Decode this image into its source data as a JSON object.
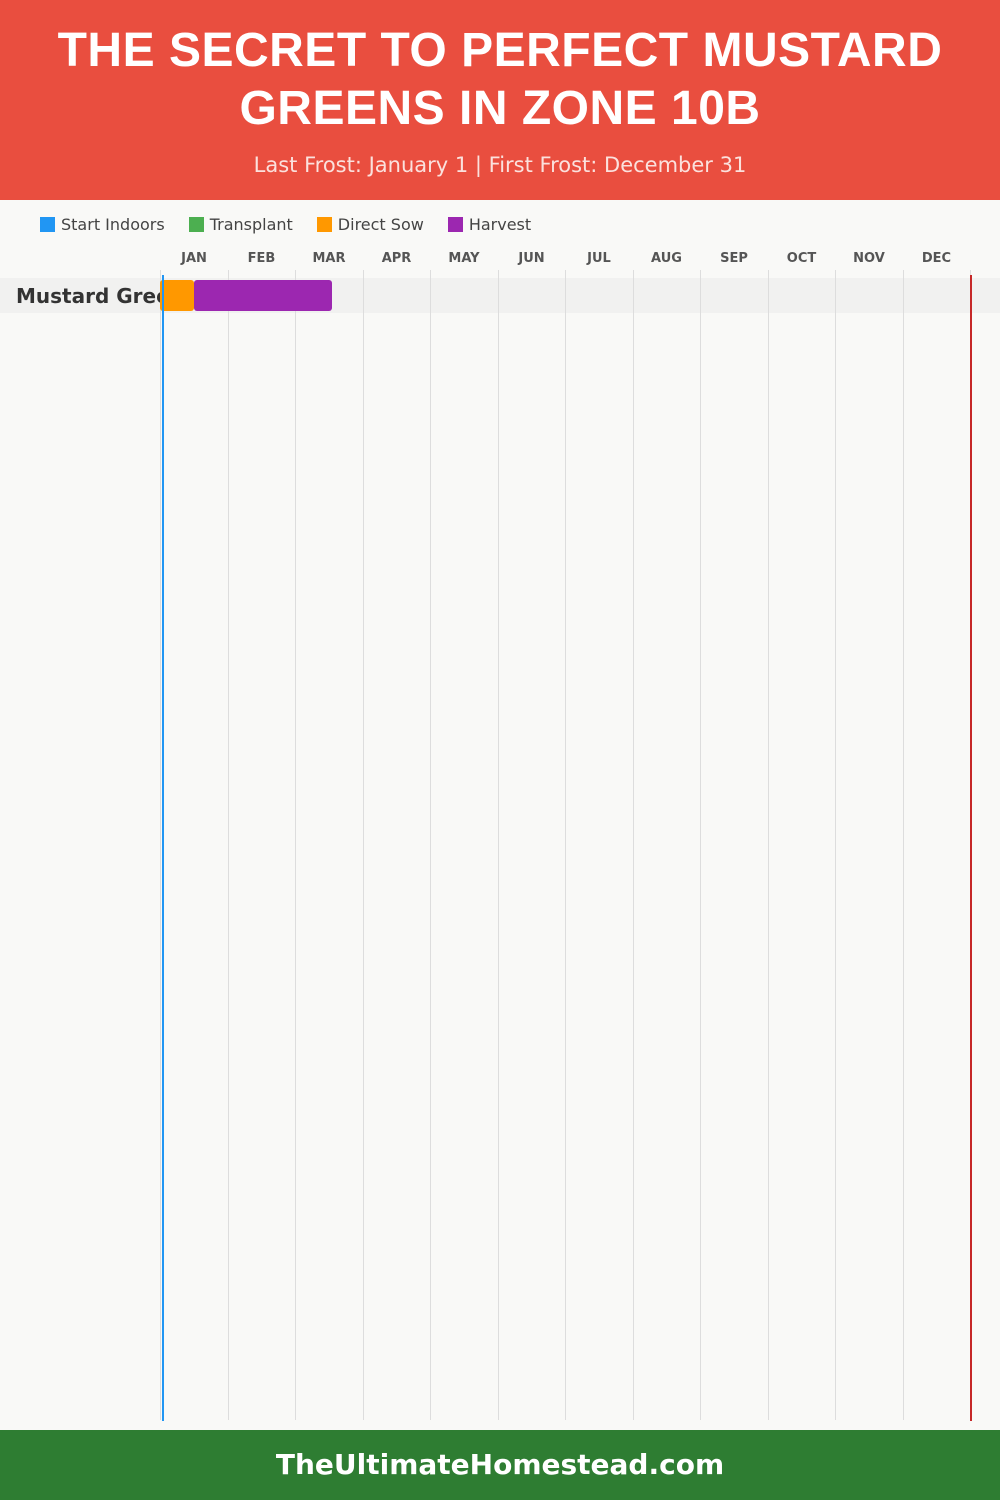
{
  "header": {
    "title": "THE SECRET TO PERFECT MUSTARD GREENS IN ZONE 10B",
    "subtitle": "Last Frost: January 1 | First Frost: December 31"
  },
  "footer": {
    "site": "TheUltimateHomestead.com"
  },
  "chart_data": {
    "type": "gantt",
    "legend": [
      {
        "name": "Start Indoors",
        "color": "#2196f3"
      },
      {
        "name": "Transplant",
        "color": "#4caf50"
      },
      {
        "name": "Direct Sow",
        "color": "#ff9800"
      },
      {
        "name": "Harvest",
        "color": "#9c27b0"
      }
    ],
    "months": [
      "JAN",
      "FEB",
      "MAR",
      "APR",
      "MAY",
      "JUN",
      "JUL",
      "AUG",
      "SEP",
      "OCT",
      "NOV",
      "DEC"
    ],
    "rows": [
      {
        "label": "Mustard Greens",
        "tasks": [
          {
            "type": "Direct Sow",
            "start_month": 0.0,
            "end_month": 0.5
          },
          {
            "type": "Harvest",
            "start_month": 0.5,
            "end_month": 2.55
          }
        ]
      }
    ],
    "markers": [
      {
        "name": "Last Frost",
        "month": 0.03,
        "color": "#2196f3"
      },
      {
        "name": "First Frost",
        "month": 12.0,
        "color": "#c62828"
      }
    ]
  }
}
